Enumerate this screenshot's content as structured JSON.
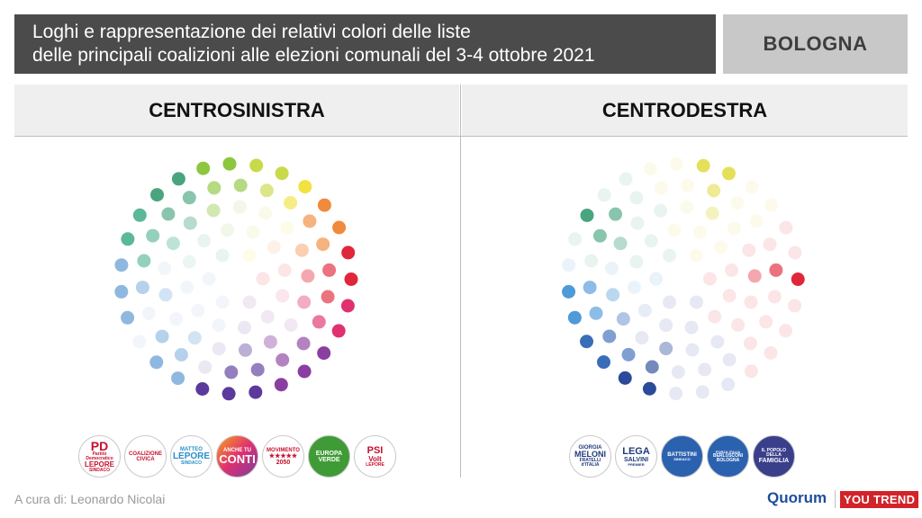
{
  "header": {
    "title_line1": "Loghi e rappresentazione dei relativi colori delle liste",
    "title_line2": "delle principali coalizioni alle elezioni comunali del 3-4 ottobre 2021",
    "city": "BOLOGNA"
  },
  "left": {
    "heading": "CENTROSINISTRA",
    "palette": [
      "#8dc63f",
      "#c9d94a",
      "#f2e240",
      "#f08a3c",
      "#e0263a",
      "#e0306f",
      "#8a3fa0",
      "#5b3a9c",
      "#8fb8e0",
      "#5bb89a",
      "#4aa57f"
    ],
    "logos": [
      {
        "name": "pd-logo",
        "t1": "PD",
        "t2": "Partito Democratico",
        "t3": "LEPORE",
        "t4": "SINDACO"
      },
      {
        "name": "coalizione-civica-logo",
        "t1": "COALIZIONE",
        "t2": "CIVICA",
        "t3": "",
        "t4": ""
      },
      {
        "name": "matteo-lepore-logo",
        "t1": "MATTEO",
        "t2": "LEPORE",
        "t3": "SINDACO",
        "t4": ""
      },
      {
        "name": "anche-tu-conti-logo",
        "t1": "ANCHE TU",
        "t2": "CONTI",
        "t3": "",
        "t4": ""
      },
      {
        "name": "movimento-5-stelle-logo",
        "t1": "MOVIMENTO",
        "t2": "★★★★★",
        "t3": "2050",
        "t4": ""
      },
      {
        "name": "europa-verde-logo",
        "t1": "EUROPA",
        "t2": "VERDE",
        "t3": "",
        "t4": ""
      },
      {
        "name": "psi-volt-logo",
        "t1": "PSI",
        "t2": "Volt",
        "t3": "LEPORE",
        "t4": ""
      }
    ]
  },
  "right": {
    "heading": "CENTRODESTRA",
    "palette": [
      "#e5e05a",
      "#4aa57f",
      "#e0263a",
      "#4f9ad8",
      "#3a6cb8",
      "#2b4a99"
    ],
    "logos": [
      {
        "name": "fratelli-ditalia-logo",
        "t1": "GIORGIA",
        "t2": "MELONI",
        "t3": "FRATELLI",
        "t4": "d'ITALIA"
      },
      {
        "name": "lega-logo",
        "t1": "LEGA",
        "t2": "SALVINI",
        "t3": "PREMIER",
        "t4": ""
      },
      {
        "name": "battistini-logo",
        "t1": "BATTISTINI",
        "t2": "SINDACO",
        "t3": "",
        "t4": ""
      },
      {
        "name": "forza-italia-logo",
        "t1": "FORZA ITALIA",
        "t2": "BERLUSCONI",
        "t3": "BOLOGNA",
        "t4": ""
      },
      {
        "name": "popolo-della-famiglia-logo",
        "t1": "IL POPOLO",
        "t2": "DELLA",
        "t3": "FAMIGLIA",
        "t4": ""
      }
    ]
  },
  "footer": {
    "credit": "A cura di: Leonardo Nicolai",
    "brand1": "Quorum",
    "brand2": "YOU TREND"
  }
}
